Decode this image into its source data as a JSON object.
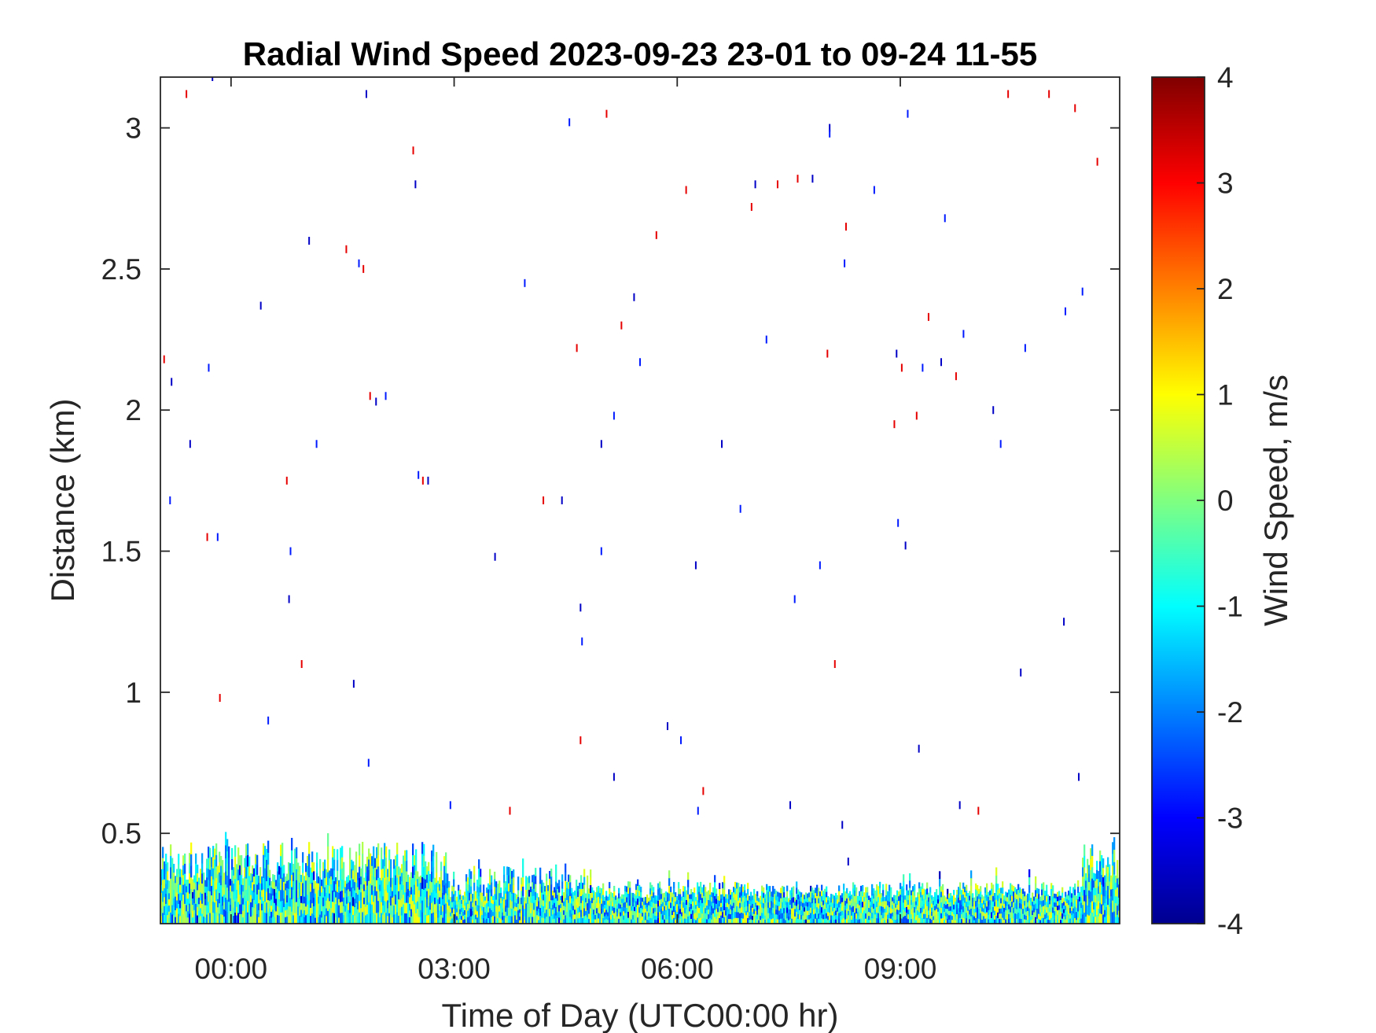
{
  "chart_data": {
    "type": "heatmap",
    "title": "Radial Wind Speed 2023-09-23 23-01 to 09-24 11-55",
    "xlabel": "Time of Day (UTC00:00 hr)",
    "ylabel": "Distance (km)",
    "x_ticks": [
      {
        "label": "00:00",
        "hours": 0
      },
      {
        "label": "03:00",
        "hours": 3
      },
      {
        "label": "06:00",
        "hours": 6
      },
      {
        "label": "09:00",
        "hours": 9
      }
    ],
    "xlim_hours": [
      -0.95,
      11.95
    ],
    "ylim": [
      0.18,
      3.18
    ],
    "y_ticks": [
      {
        "label": "0.5",
        "value": 0.5
      },
      {
        "label": "1",
        "value": 1
      },
      {
        "label": "1.5",
        "value": 1.5
      },
      {
        "label": "2",
        "value": 2
      },
      {
        "label": "2.5",
        "value": 2.5
      },
      {
        "label": "3",
        "value": 3
      }
    ],
    "colorbar": {
      "label": "Wind Speed, m/s",
      "colormap": "jet",
      "clim": [
        -4,
        4
      ],
      "ticks": [
        {
          "label": "4",
          "value": 4
        },
        {
          "label": "3",
          "value": 3
        },
        {
          "label": "2",
          "value": 2
        },
        {
          "label": "1",
          "value": 1
        },
        {
          "label": "0",
          "value": 0
        },
        {
          "label": "-1",
          "value": -1
        },
        {
          "label": "-2",
          "value": -2
        },
        {
          "label": "-3",
          "value": -3
        },
        {
          "label": "-4",
          "value": -4
        }
      ],
      "colors": [
        "#00008f",
        "#0000ff",
        "#0080ff",
        "#00ffff",
        "#80ff80",
        "#ffff00",
        "#ff8000",
        "#ff0000",
        "#800000"
      ]
    },
    "dense_layer": {
      "distance_km": [
        0.18,
        0.47
      ],
      "typical_speed_ms": [
        -2.5,
        1.0
      ],
      "description_values_note": ""
    },
    "sparse_points": [
      [
        -0.9,
        2.18
      ],
      [
        -0.8,
        2.1
      ],
      [
        -0.82,
        1.68
      ],
      [
        -0.6,
        3.12
      ],
      [
        -0.55,
        1.88
      ],
      [
        -0.3,
        2.15
      ],
      [
        -0.32,
        1.55
      ],
      [
        -0.25,
        3.18
      ],
      [
        -0.18,
        1.55
      ],
      [
        -0.15,
        0.98
      ],
      [
        0.4,
        2.37
      ],
      [
        0.5,
        0.9
      ],
      [
        0.75,
        1.75
      ],
      [
        0.78,
        1.33
      ],
      [
        0.8,
        1.5
      ],
      [
        0.95,
        1.1
      ],
      [
        1.05,
        2.6
      ],
      [
        1.15,
        1.88
      ],
      [
        1.55,
        2.57
      ],
      [
        1.65,
        1.03
      ],
      [
        1.72,
        2.52
      ],
      [
        1.78,
        2.5
      ],
      [
        1.82,
        3.12
      ],
      [
        1.85,
        0.75
      ],
      [
        1.87,
        2.05
      ],
      [
        1.95,
        2.03
      ],
      [
        2.08,
        2.05
      ],
      [
        2.45,
        2.92
      ],
      [
        2.48,
        2.8
      ],
      [
        2.52,
        1.77
      ],
      [
        2.58,
        1.75
      ],
      [
        2.65,
        1.75
      ],
      [
        2.95,
        0.6
      ],
      [
        3.75,
        0.58
      ],
      [
        3.55,
        1.48
      ],
      [
        3.95,
        2.45
      ],
      [
        4.2,
        1.68
      ],
      [
        4.45,
        1.68
      ],
      [
        4.55,
        3.02
      ],
      [
        4.65,
        2.22
      ],
      [
        4.7,
        1.3
      ],
      [
        4.72,
        1.18
      ],
      [
        4.7,
        0.83
      ],
      [
        4.98,
        1.88
      ],
      [
        4.98,
        1.5
      ],
      [
        5.05,
        3.05
      ],
      [
        5.15,
        0.7
      ],
      [
        5.15,
        1.98
      ],
      [
        5.25,
        2.3
      ],
      [
        5.42,
        2.4
      ],
      [
        5.5,
        2.17
      ],
      [
        5.72,
        2.62
      ],
      [
        5.87,
        0.88
      ],
      [
        6.05,
        0.83
      ],
      [
        6.12,
        2.78
      ],
      [
        6.25,
        1.45
      ],
      [
        6.28,
        0.58
      ],
      [
        6.35,
        0.65
      ],
      [
        6.6,
        1.88
      ],
      [
        6.85,
        1.65
      ],
      [
        7.0,
        2.72
      ],
      [
        7.05,
        2.8
      ],
      [
        7.2,
        2.25
      ],
      [
        7.35,
        2.8
      ],
      [
        7.52,
        0.6
      ],
      [
        7.58,
        1.33
      ],
      [
        7.62,
        2.82
      ],
      [
        7.82,
        2.82
      ],
      [
        7.92,
        1.45
      ],
      [
        8.02,
        2.2
      ],
      [
        8.05,
        3.0
      ],
      [
        8.05,
        2.98
      ],
      [
        8.12,
        1.1
      ],
      [
        8.22,
        0.53
      ],
      [
        8.25,
        2.52
      ],
      [
        8.27,
        2.65
      ],
      [
        8.3,
        0.4
      ],
      [
        8.65,
        2.78
      ],
      [
        8.92,
        1.95
      ],
      [
        8.95,
        2.2
      ],
      [
        8.97,
        1.6
      ],
      [
        9.02,
        2.15
      ],
      [
        9.07,
        1.52
      ],
      [
        9.1,
        3.05
      ],
      [
        9.22,
        1.98
      ],
      [
        9.25,
        0.8
      ],
      [
        9.3,
        2.15
      ],
      [
        9.38,
        2.33
      ],
      [
        9.55,
        2.17
      ],
      [
        9.6,
        2.68
      ],
      [
        9.75,
        2.12
      ],
      [
        9.8,
        0.6
      ],
      [
        9.85,
        2.27
      ],
      [
        10.05,
        0.58
      ],
      [
        10.25,
        2.0
      ],
      [
        10.35,
        1.88
      ],
      [
        10.45,
        3.12
      ],
      [
        10.62,
        1.07
      ],
      [
        10.68,
        2.22
      ],
      [
        11.0,
        3.12
      ],
      [
        11.2,
        1.25
      ],
      [
        11.22,
        2.35
      ],
      [
        11.35,
        3.07
      ],
      [
        11.4,
        0.7
      ],
      [
        11.45,
        2.42
      ],
      [
        11.65,
        2.88
      ]
    ]
  }
}
